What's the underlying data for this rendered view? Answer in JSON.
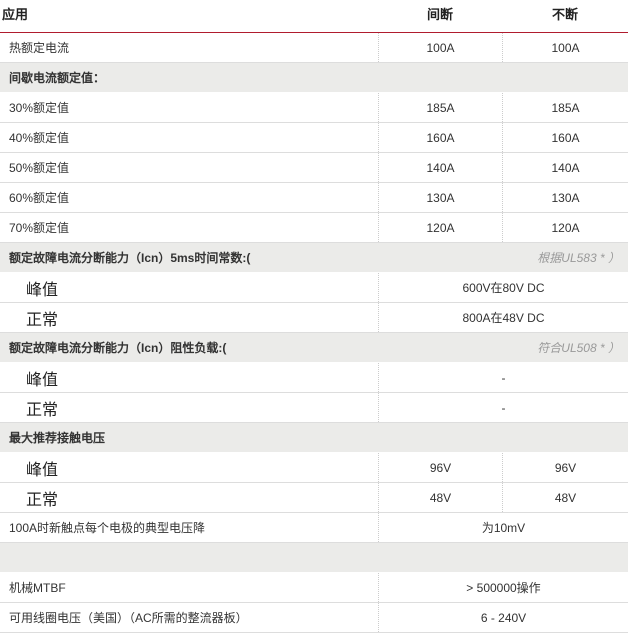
{
  "header": {
    "col0": "应用",
    "col1": "间断",
    "col2": "不断"
  },
  "rows": [
    {
      "type": "normal",
      "label": "热额定电流",
      "v1": "100A",
      "v2": "100A"
    },
    {
      "type": "section",
      "label": "间歇电流额定值：",
      "note": ""
    },
    {
      "type": "normal",
      "label": "30%额定值",
      "v1": "185A",
      "v2": "185A"
    },
    {
      "type": "normal",
      "label": "40%额定值",
      "v1": "160A",
      "v2": "160A"
    },
    {
      "type": "normal",
      "label": "50%额定值",
      "v1": "140A",
      "v2": "140A"
    },
    {
      "type": "normal",
      "label": "60%额定值",
      "v1": "130A",
      "v2": "130A"
    },
    {
      "type": "normal",
      "label": "70%额定值",
      "v1": "120A",
      "v2": "120A"
    },
    {
      "type": "section",
      "label": "额定故障电流分断能力（Icn）5ms时间常数:(",
      "note": "根据UL583 * ）"
    },
    {
      "type": "merged",
      "big": true,
      "label": "峰值",
      "v": "600V在80V DC"
    },
    {
      "type": "merged",
      "big": true,
      "label": "正常",
      "v": "800A在48V DC"
    },
    {
      "type": "section",
      "label": "额定故障电流分断能力（Icn）阻性负载:(",
      "note": "符合UL508 * ）"
    },
    {
      "type": "merged",
      "big": true,
      "label": "峰值",
      "v": "-"
    },
    {
      "type": "merged",
      "big": true,
      "label": "正常",
      "v": "-"
    },
    {
      "type": "section",
      "label": "最大推荐接触电压",
      "note": ""
    },
    {
      "type": "normal",
      "big": true,
      "label": "峰值",
      "v1": "96V",
      "v2": "96V"
    },
    {
      "type": "normal",
      "big": true,
      "label": "正常",
      "v1": "48V",
      "v2": "48V"
    },
    {
      "type": "merged",
      "label": "100A时新触点每个电极的典型电压降",
      "v": "为10mV"
    },
    {
      "type": "section",
      "label": "",
      "note": ""
    },
    {
      "type": "merged",
      "label": "机械MTBF",
      "v": "> 500000操作"
    },
    {
      "type": "merged",
      "label": "可用线圈电压（美国）（AC所需的整流器板）",
      "v": "6 - 240V"
    }
  ]
}
